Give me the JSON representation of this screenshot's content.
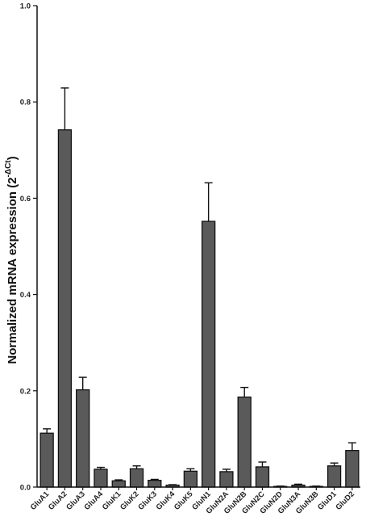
{
  "chart_data": {
    "type": "bar",
    "title": "",
    "xlabel": "",
    "ylabel": "Normalized mRNA expression (2",
    "ylabel_superscript": "-ΔCt",
    "ylabel_suffix": ")",
    "ylim": [
      0,
      1.0
    ],
    "yticks": [
      "0.0",
      "0.2",
      "0.4",
      "0.6",
      "0.8",
      "1.0"
    ],
    "ytick_values": [
      0,
      0.2,
      0.4,
      0.6,
      0.8,
      1.0
    ],
    "categories": [
      "GluA1",
      "GluA2",
      "GluA3",
      "GluA4",
      "GluK1",
      "GluK2",
      "GluK3",
      "GluK4",
      "GluK5",
      "GluN1",
      "GluN2A",
      "GluN2B",
      "GluN2C",
      "GluN2D",
      "GluN3A",
      "GluN3B",
      "GluD1",
      "GluD2"
    ],
    "values": [
      0.112,
      0.742,
      0.202,
      0.037,
      0.013,
      0.038,
      0.014,
      0.004,
      0.033,
      0.552,
      0.032,
      0.187,
      0.042,
      0.001,
      0.004,
      0.001,
      0.044,
      0.076
    ],
    "errors": [
      0.009,
      0.087,
      0.026,
      0.004,
      0.002,
      0.006,
      0.002,
      0.001,
      0.005,
      0.08,
      0.005,
      0.02,
      0.01,
      0.001,
      0.002,
      0.001,
      0.006,
      0.016
    ],
    "bar_color": "#5a5a5a",
    "grid": false
  }
}
